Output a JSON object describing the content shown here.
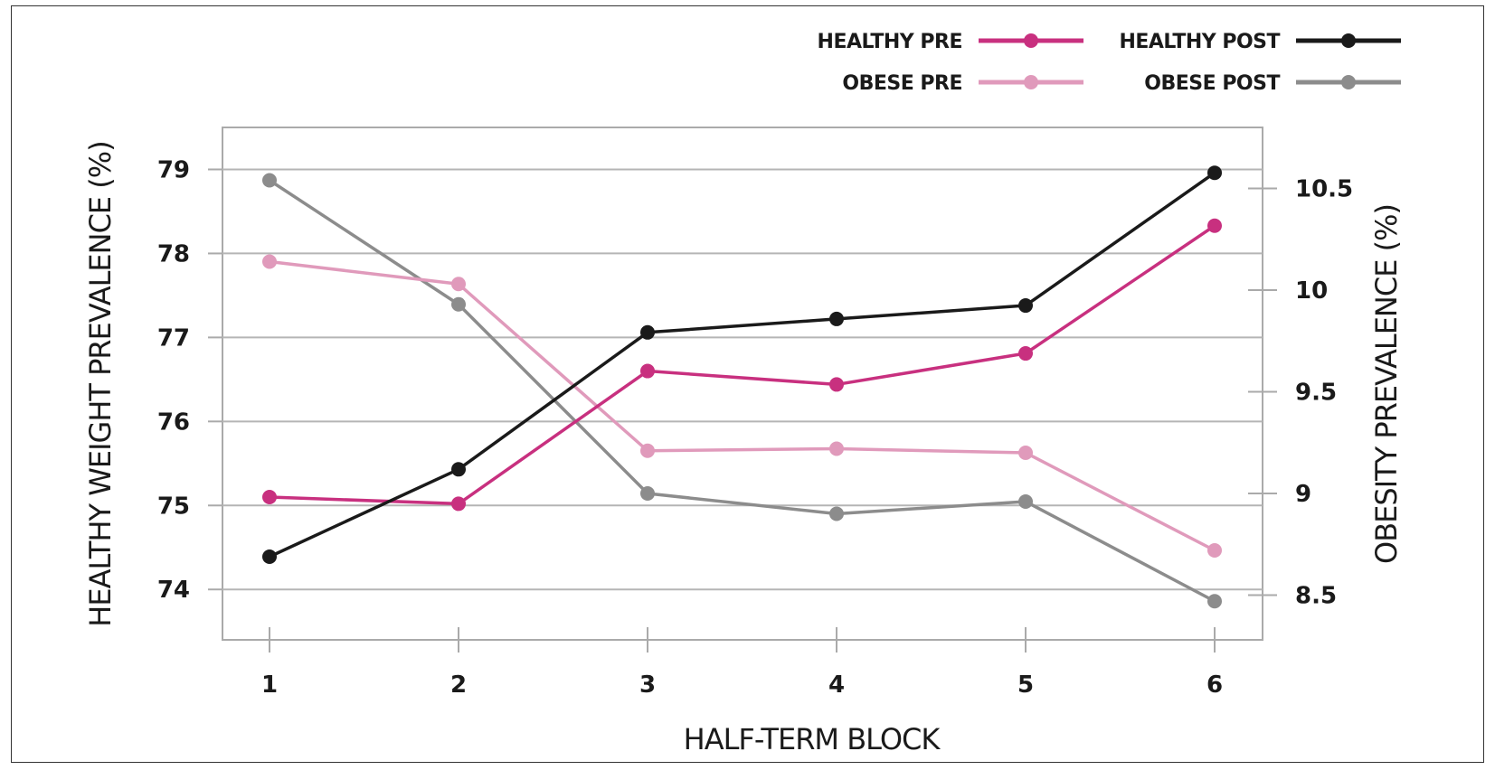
{
  "chart_data": {
    "type": "line",
    "title": "",
    "xlabel": "HALF-TERM BLOCK",
    "ylabel": "HEALTHY WEIGHT PREVALENCE (%)",
    "y2label": "OBESITY PREVALENCE (%)",
    "x": [
      1,
      2,
      3,
      4,
      5,
      6
    ],
    "ylim": [
      73.4,
      79.5
    ],
    "y2lim": [
      8.28,
      10.8
    ],
    "yticks": [
      74,
      75,
      76,
      77,
      78,
      79
    ],
    "y2ticks": [
      8.5,
      9,
      9.5,
      10,
      10.5
    ],
    "y2tick_labels": [
      "8.5",
      "9",
      "9.5",
      "10",
      "10.5"
    ],
    "grid": true,
    "legend_position": "top-right",
    "series": [
      {
        "name": "HEALTHY PRE",
        "axis": "left",
        "color": "#c8307f",
        "values": [
          75.1,
          75.02,
          76.6,
          76.44,
          76.81,
          78.33
        ]
      },
      {
        "name": "HEALTHY POST",
        "axis": "left",
        "color": "#1a1a1a",
        "values": [
          74.39,
          75.43,
          77.06,
          77.22,
          77.38,
          78.96
        ]
      },
      {
        "name": "OBESE PRE",
        "axis": "right",
        "color": "#e09abb",
        "values": [
          10.14,
          10.03,
          9.21,
          9.22,
          9.2,
          8.72
        ]
      },
      {
        "name": "OBESE POST",
        "axis": "right",
        "color": "#8c8c8c",
        "values": [
          10.54,
          9.93,
          9.0,
          8.9,
          8.96,
          8.47
        ]
      }
    ]
  }
}
